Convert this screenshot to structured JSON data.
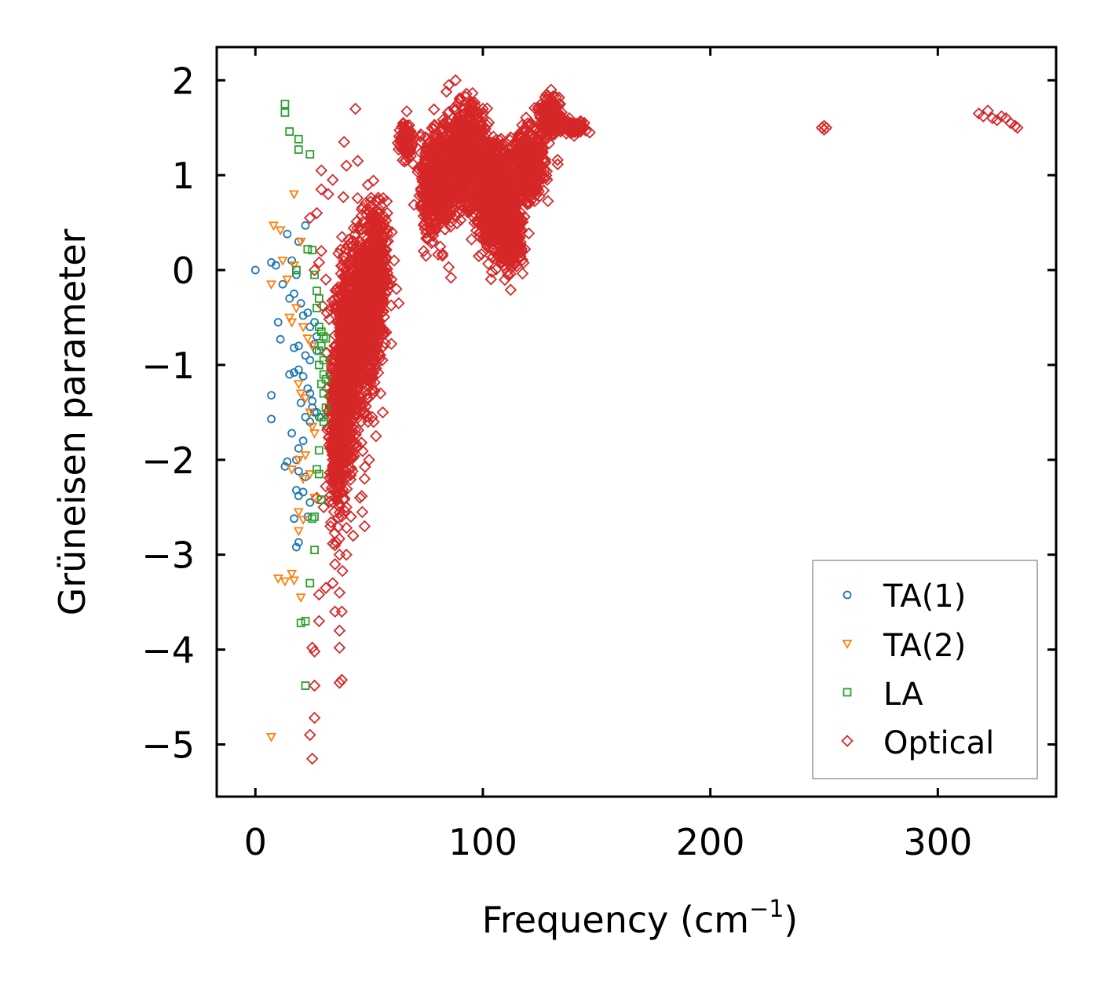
{
  "chart_data": {
    "type": "scatter",
    "title": "",
    "xlabel": "Frequency (cm",
    "xlabel_sup": "−1",
    "xlabel_suffix": ")",
    "ylabel": "Grüneisen parameter",
    "xlim": [
      -17,
      352
    ],
    "ylim": [
      -5.55,
      2.35
    ],
    "xticks": [
      0,
      100,
      200,
      300
    ],
    "xtick_labels": [
      "0",
      "100",
      "200",
      "300"
    ],
    "yticks": [
      2,
      1,
      0,
      -1,
      -2,
      -3,
      -4,
      -5
    ],
    "ytick_labels": [
      "2",
      "1",
      "0",
      "−1",
      "−2",
      "−3",
      "−4",
      "−5"
    ],
    "legend_position": "lower-right",
    "legend": [
      {
        "name": "TA(1)",
        "marker": "circle",
        "color": "#1f77b4"
      },
      {
        "name": "TA(2)",
        "marker": "triangle-down",
        "color": "#ff7f0e"
      },
      {
        "name": "LA",
        "marker": "square",
        "color": "#2ca02c"
      },
      {
        "name": "Optical",
        "marker": "diamond",
        "color": "#d62728"
      }
    ],
    "series": [
      {
        "name": "TA(1)",
        "marker": "circle",
        "color": "#1f77b4",
        "points": [
          [
            0,
            0
          ],
          [
            7,
            0.08
          ],
          [
            9,
            0.05
          ],
          [
            12,
            -0.15
          ],
          [
            14,
            0.38
          ],
          [
            16,
            0.1
          ],
          [
            18,
            -0.05
          ],
          [
            19,
            0.3
          ],
          [
            22,
            0.47
          ],
          [
            15,
            -0.3
          ],
          [
            17,
            -0.25
          ],
          [
            20,
            -0.35
          ],
          [
            21,
            -0.48
          ],
          [
            23,
            -0.45
          ],
          [
            24,
            -0.6
          ],
          [
            26,
            -0.55
          ],
          [
            27,
            -0.7
          ],
          [
            10,
            -0.55
          ],
          [
            11,
            -0.73
          ],
          [
            17,
            -0.82
          ],
          [
            19,
            -0.8
          ],
          [
            22,
            -0.9
          ],
          [
            24,
            -0.95
          ],
          [
            26,
            -0.78
          ],
          [
            27,
            -0.85
          ],
          [
            15,
            -1.1
          ],
          [
            17,
            -1.08
          ],
          [
            19,
            -1.05
          ],
          [
            21,
            -1.12
          ],
          [
            23,
            -1.25
          ],
          [
            24,
            -1.3
          ],
          [
            25,
            -1.45
          ],
          [
            26,
            -1.5
          ],
          [
            7,
            -1.32
          ],
          [
            7,
            -1.57
          ],
          [
            20,
            -1.4
          ],
          [
            22,
            -1.55
          ],
          [
            24,
            -1.6
          ],
          [
            25,
            -1.38
          ],
          [
            27,
            -1.5
          ],
          [
            28,
            -1.55
          ],
          [
            16,
            -1.72
          ],
          [
            19,
            -1.88
          ],
          [
            21,
            -1.8
          ],
          [
            13,
            -2.07
          ],
          [
            14,
            -2.02
          ],
          [
            18,
            -2.0
          ],
          [
            19,
            -2.12
          ],
          [
            22,
            -2.18
          ],
          [
            18,
            -2.32
          ],
          [
            19,
            -2.38
          ],
          [
            21,
            -2.34
          ],
          [
            24,
            -2.45
          ],
          [
            17,
            -2.62
          ],
          [
            19,
            -2.87
          ],
          [
            18,
            -2.92
          ],
          [
            23,
            -2.6
          ]
        ]
      },
      {
        "name": "TA(2)",
        "marker": "triangle-down",
        "color": "#ff7f0e",
        "points": [
          [
            7,
            -4.92
          ],
          [
            8,
            0.47
          ],
          [
            11,
            0.42
          ],
          [
            7,
            -0.15
          ],
          [
            12,
            0.1
          ],
          [
            14,
            -0.1
          ],
          [
            17,
            0.05
          ],
          [
            20,
            0.3
          ],
          [
            17,
            0.8
          ],
          [
            15,
            -0.5
          ],
          [
            16,
            -0.55
          ],
          [
            18,
            -0.4
          ],
          [
            21,
            -0.6
          ],
          [
            23,
            -0.72
          ],
          [
            25,
            -0.8
          ],
          [
            19,
            -1.2
          ],
          [
            20,
            -1.3
          ],
          [
            22,
            -1.35
          ],
          [
            24,
            -1.5
          ],
          [
            25,
            -1.65
          ],
          [
            26,
            -1.72
          ],
          [
            16,
            -2.1
          ],
          [
            19,
            -2.0
          ],
          [
            21,
            -2.2
          ],
          [
            22,
            -1.95
          ],
          [
            24,
            -2.15
          ],
          [
            26,
            -2.4
          ],
          [
            19,
            -2.55
          ],
          [
            21,
            -2.63
          ],
          [
            19,
            -2.75
          ],
          [
            10,
            -3.25
          ],
          [
            13,
            -3.28
          ],
          [
            16,
            -3.2
          ],
          [
            17,
            -3.27
          ],
          [
            20,
            -3.45
          ]
        ]
      },
      {
        "name": "LA",
        "marker": "square",
        "color": "#2ca02c",
        "points": [
          [
            13,
            1.75
          ],
          [
            13,
            1.66
          ],
          [
            15,
            1.46
          ],
          [
            19,
            1.38
          ],
          [
            19,
            1.27
          ],
          [
            24,
            1.22
          ],
          [
            23,
            0.22
          ],
          [
            25,
            0.21
          ],
          [
            18,
            0.0
          ],
          [
            26,
            -0.05
          ],
          [
            27,
            -0.22
          ],
          [
            28,
            -0.3
          ],
          [
            27,
            -0.4
          ],
          [
            28,
            -0.6
          ],
          [
            29,
            -0.65
          ],
          [
            30,
            -0.7
          ],
          [
            31,
            -0.72
          ],
          [
            29,
            -0.8
          ],
          [
            28,
            -0.85
          ],
          [
            30,
            -0.95
          ],
          [
            28,
            -1.0
          ],
          [
            30,
            -1.1
          ],
          [
            31,
            -1.15
          ],
          [
            29,
            -1.2
          ],
          [
            30,
            -1.3
          ],
          [
            31,
            -1.45
          ],
          [
            29,
            -1.55
          ],
          [
            30,
            -1.6
          ],
          [
            28,
            -1.9
          ],
          [
            27,
            -2.1
          ],
          [
            28,
            -2.15
          ],
          [
            29,
            -2.42
          ],
          [
            26,
            -2.6
          ],
          [
            25,
            -2.62
          ],
          [
            26,
            -2.95
          ],
          [
            24,
            -3.3
          ],
          [
            20,
            -3.72
          ],
          [
            22,
            -3.7
          ],
          [
            22,
            -4.38
          ]
        ]
      },
      {
        "name": "Optical",
        "marker": "diamond",
        "color": "#d62728",
        "points": [
          [
            44,
            1.7
          ],
          [
            39,
            1.35
          ],
          [
            29,
            1.05
          ],
          [
            34,
            0.95
          ],
          [
            40,
            1.1
          ],
          [
            45,
            1.15
          ],
          [
            29,
            0.85
          ],
          [
            32,
            0.8
          ],
          [
            24,
            0.55
          ],
          [
            27,
            0.6
          ],
          [
            29,
            0.2
          ],
          [
            28,
            0.08
          ],
          [
            26,
            0.0
          ],
          [
            31,
            -0.1
          ],
          [
            27,
            -2.4
          ],
          [
            30,
            -2.5
          ],
          [
            33,
            -2.7
          ],
          [
            35,
            -2.9
          ],
          [
            37,
            -3.0
          ],
          [
            40,
            -3.0
          ],
          [
            35,
            -3.1
          ],
          [
            34,
            -3.3
          ],
          [
            31,
            -3.35
          ],
          [
            28,
            -3.42
          ],
          [
            37,
            -3.4
          ],
          [
            35,
            -3.6
          ],
          [
            38,
            -3.6
          ],
          [
            37,
            -3.8
          ],
          [
            28,
            -3.7
          ],
          [
            25,
            -3.98
          ],
          [
            26,
            -4.02
          ],
          [
            37,
            -3.98
          ],
          [
            37,
            -4.35
          ],
          [
            38,
            -4.32
          ],
          [
            26,
            -4.38
          ],
          [
            26,
            -4.72
          ],
          [
            24,
            -4.9
          ],
          [
            25,
            -5.15
          ],
          [
            46,
            -2.4
          ],
          [
            47,
            -2.55
          ],
          [
            48,
            -2.7
          ],
          [
            43,
            -2.8
          ],
          [
            42,
            -2.6
          ],
          [
            40,
            -2.5
          ],
          [
            52,
            -1.6
          ],
          [
            55,
            -1.3
          ],
          [
            56,
            -1.5
          ],
          [
            53,
            -1.75
          ],
          [
            50,
            -2.0
          ],
          [
            48,
            -2.2
          ],
          [
            58,
            0.6
          ],
          [
            60,
            0.4
          ],
          [
            61,
            0.1
          ],
          [
            62,
            -0.2
          ],
          [
            63,
            -0.35
          ],
          [
            65,
            1.55
          ],
          [
            66,
            1.5
          ],
          [
            67,
            1.42
          ],
          [
            68,
            1.25
          ],
          [
            70,
            1.4
          ],
          [
            64,
            1.3
          ],
          [
            86,
            -0.08
          ],
          [
            85,
            0.03
          ],
          [
            74,
            0.2
          ],
          [
            75,
            0.15
          ],
          [
            78,
            0.3
          ],
          [
            96,
            0.6
          ],
          [
            104,
            -0.02
          ],
          [
            111,
            -0.05
          ],
          [
            113,
            0.15
          ],
          [
            115,
            0.3
          ],
          [
            85,
            1.95
          ],
          [
            88,
            2.0
          ],
          [
            84,
            1.88
          ],
          [
            90,
            1.8
          ],
          [
            95,
            1.75
          ],
          [
            100,
            1.7
          ],
          [
            130,
            1.9
          ],
          [
            128,
            1.85
          ],
          [
            134,
            1.75
          ],
          [
            138,
            1.6
          ],
          [
            142,
            1.5
          ],
          [
            147,
            1.45
          ],
          [
            249,
            1.5
          ],
          [
            250,
            1.48
          ],
          [
            251,
            1.5
          ],
          [
            250,
            1.52
          ],
          [
            318,
            1.65
          ],
          [
            320,
            1.62
          ],
          [
            322,
            1.68
          ],
          [
            324,
            1.6
          ],
          [
            326,
            1.58
          ],
          [
            328,
            1.62
          ],
          [
            330,
            1.6
          ],
          [
            332,
            1.55
          ],
          [
            334,
            1.52
          ],
          [
            335,
            1.5
          ]
        ],
        "cloud_regions": [
          {
            "xc": 40,
            "yc": -1.0,
            "xs": 5,
            "ys": 0.9,
            "n": 700
          },
          {
            "xc": 48,
            "yc": -0.5,
            "xs": 5,
            "ys": 0.7,
            "n": 650
          },
          {
            "xc": 53,
            "yc": 0.0,
            "xs": 4,
            "ys": 0.6,
            "n": 500
          },
          {
            "xc": 36,
            "yc": -1.8,
            "xs": 3,
            "ys": 0.6,
            "n": 350
          },
          {
            "xc": 66,
            "yc": 1.35,
            "xs": 2.5,
            "ys": 0.15,
            "n": 120
          },
          {
            "xc": 80,
            "yc": 0.9,
            "xs": 6,
            "ys": 0.4,
            "n": 600
          },
          {
            "xc": 92,
            "yc": 1.2,
            "xs": 7,
            "ys": 0.4,
            "n": 700
          },
          {
            "xc": 105,
            "yc": 0.8,
            "xs": 7,
            "ys": 0.45,
            "n": 700
          },
          {
            "xc": 112,
            "yc": 0.4,
            "xs": 5,
            "ys": 0.3,
            "n": 350
          },
          {
            "xc": 120,
            "yc": 1.1,
            "xs": 6,
            "ys": 0.3,
            "n": 400
          },
          {
            "xc": 130,
            "yc": 1.6,
            "xs": 4,
            "ys": 0.15,
            "n": 250
          },
          {
            "xc": 140,
            "yc": 1.5,
            "xs": 4,
            "ys": 0.05,
            "n": 80
          }
        ]
      }
    ]
  }
}
